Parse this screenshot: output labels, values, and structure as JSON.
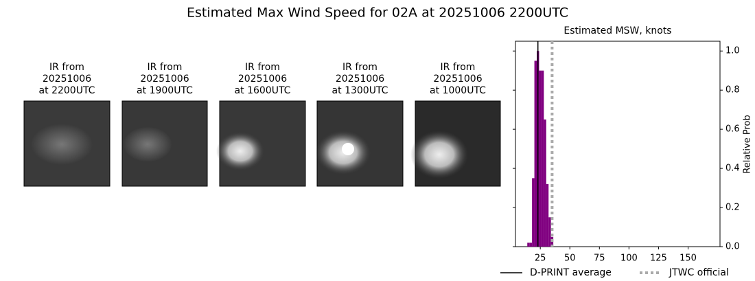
{
  "title": "Estimated Max Wind Speed for 02A at 20251006 2200UTC",
  "panels": [
    {
      "title": [
        "IR from",
        "20251006",
        "at 2200UTC"
      ]
    },
    {
      "title": [
        "IR from",
        "20251006",
        "at 1900UTC"
      ]
    },
    {
      "title": [
        "IR from",
        "20251006",
        "at 1600UTC"
      ]
    },
    {
      "title": [
        "IR from",
        "20251006",
        "at 1300UTC"
      ]
    },
    {
      "title": [
        "IR from",
        "20251006",
        "at 1000UTC"
      ]
    }
  ],
  "chart_data": {
    "type": "histogram",
    "title": "Estimated MSW, knots",
    "y_label": "Relative Prob",
    "bins": [
      14,
      16,
      18,
      20,
      22,
      24,
      26,
      28,
      30,
      32,
      34,
      36
    ],
    "values": [
      0.02,
      0.02,
      0.35,
      0.95,
      1.0,
      0.9,
      0.9,
      0.65,
      0.32,
      0.15,
      0.05
    ],
    "color": "#800080",
    "xlim": [
      4,
      177
    ],
    "xticks": [
      25,
      50,
      75,
      100,
      125,
      150
    ],
    "ylim": [
      0,
      1.05
    ],
    "yticks": [
      {
        "value": 0,
        "label": "0.0"
      },
      0.2,
      0.4,
      0.6,
      0.8,
      {
        "value": 1,
        "label": "1.0"
      }
    ],
    "lines": [
      {
        "name": "D-PRINT average",
        "value": 23,
        "color": "#000000",
        "style": "solid"
      },
      {
        "name": "JTWC official",
        "value": 35,
        "color": "#aaaaaa",
        "style": "dotted"
      }
    ]
  }
}
